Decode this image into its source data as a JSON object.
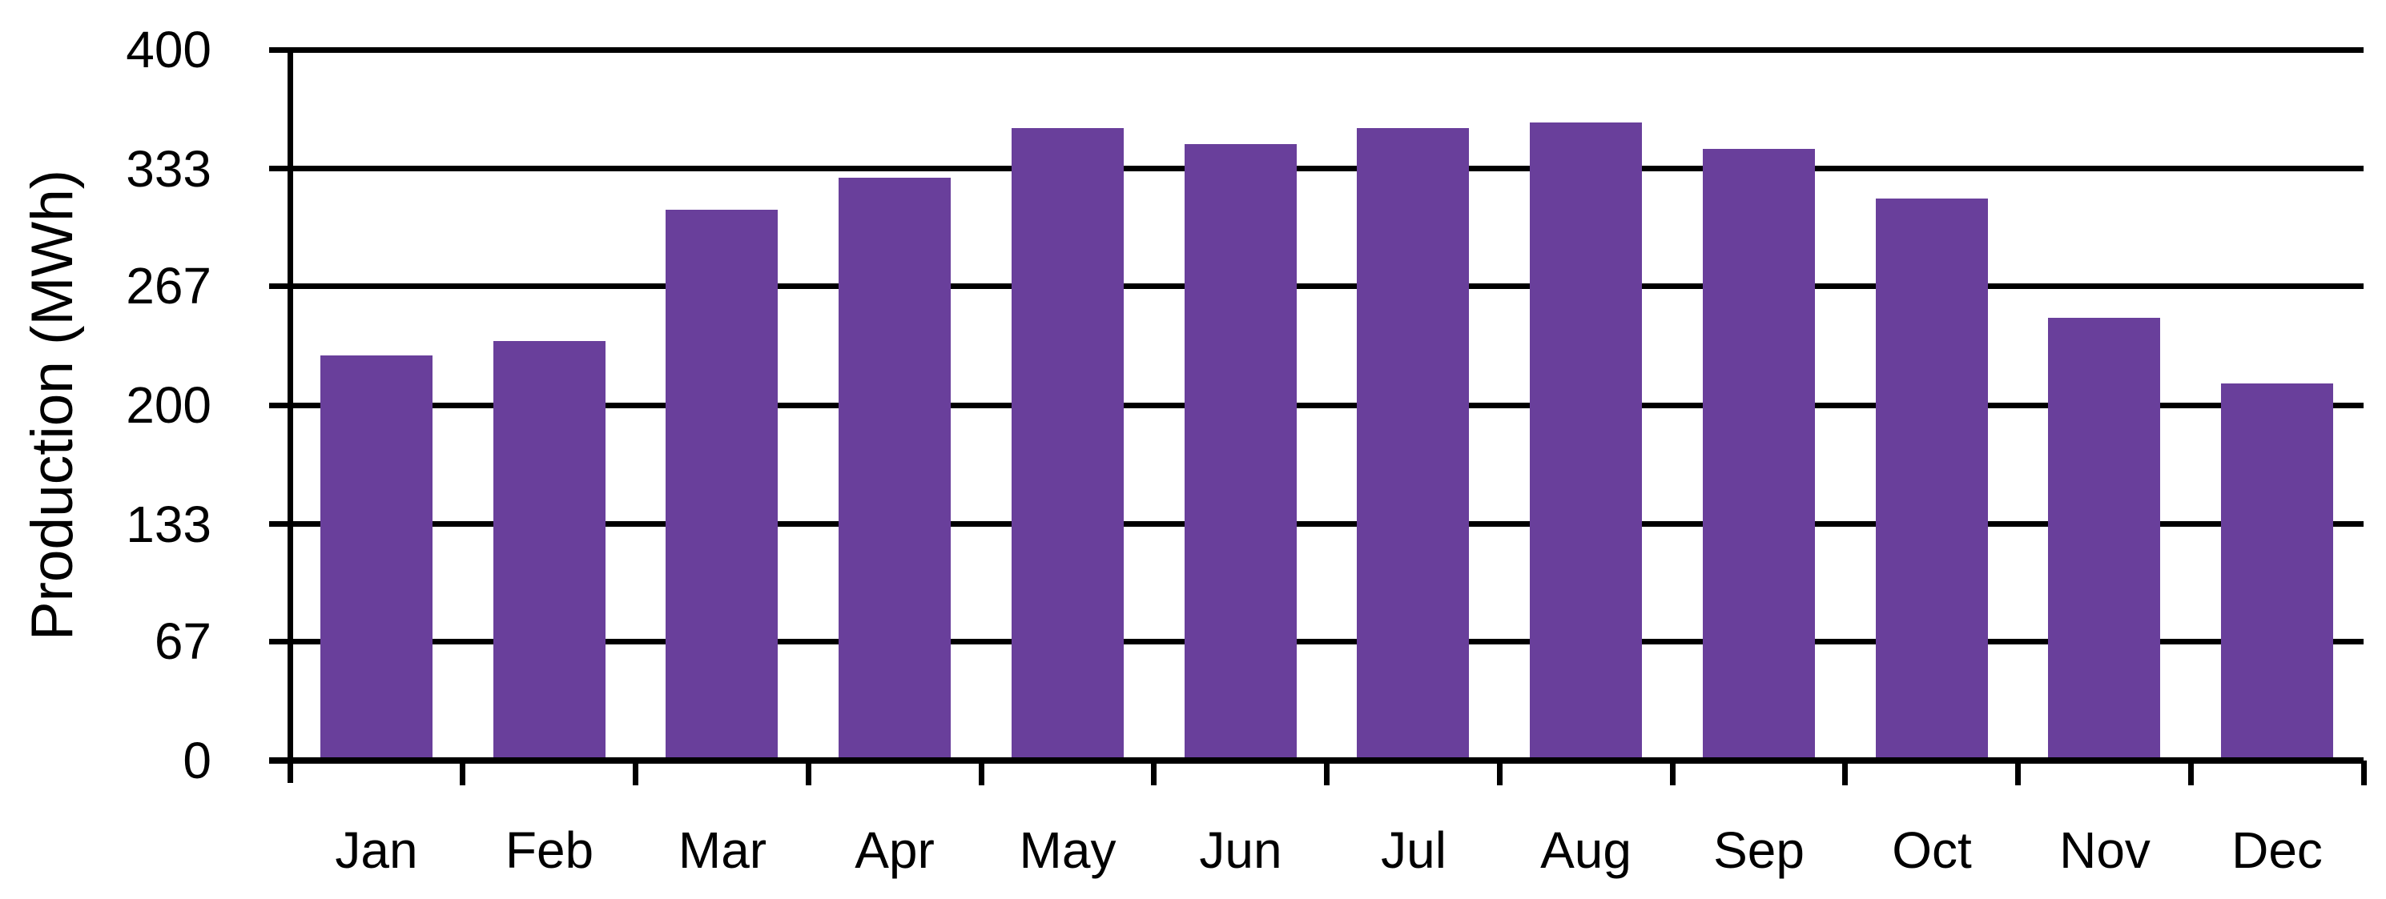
{
  "chart_data": {
    "type": "bar",
    "title": "",
    "xlabel": "",
    "ylabel": "Production (MWh)",
    "categories": [
      "Jan",
      "Feb",
      "Mar",
      "Apr",
      "May",
      "Jun",
      "Jul",
      "Aug",
      "Sep",
      "Oct",
      "Nov",
      "Dec"
    ],
    "values": [
      228,
      236,
      310,
      328,
      356,
      347,
      356,
      359,
      344,
      316,
      249,
      212
    ],
    "series_name": "Production",
    "ylim": [
      0,
      400
    ],
    "yticks": [
      0,
      67,
      133,
      200,
      267,
      333,
      400
    ],
    "grid": "horizontal-major",
    "legend": "none",
    "bar_color": "#693f9b",
    "axis_color": "#000000",
    "text_color": "#000000",
    "background_color": "#ffffff"
  }
}
